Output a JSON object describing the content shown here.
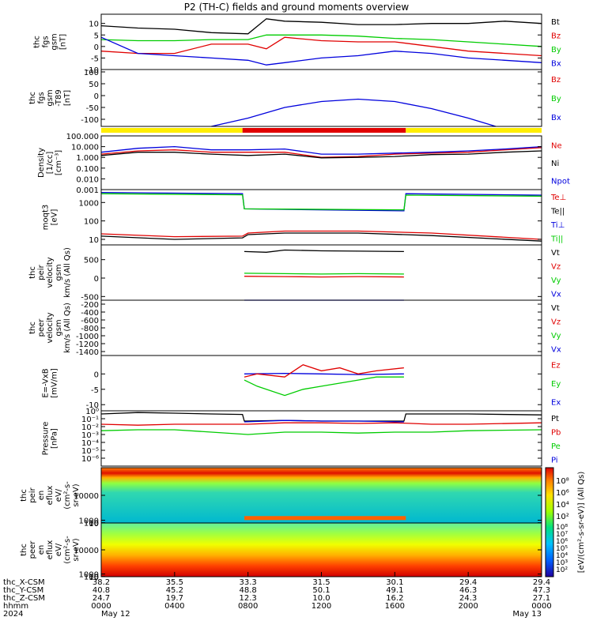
{
  "title": "P2 (TH-C) fields and ground moments overview",
  "colors": {
    "black": "#000000",
    "red": "#e00000",
    "green": "#00cc00",
    "blue": "#0000dd",
    "yellow": "#ffee00"
  },
  "chart_data": [
    {
      "type": "line",
      "name": "thc_fgs_gsm",
      "ylabel": [
        "thc",
        "fgs",
        "gsm",
        "[nT]"
      ],
      "ylim": [
        -10,
        14
      ],
      "yticks": [
        -10,
        -5,
        0,
        5,
        10
      ],
      "ytick_labels": [
        "-10",
        "-5",
        "0",
        "5",
        "10"
      ],
      "legend": [
        "Bt",
        "Bz",
        "By",
        "Bx"
      ],
      "legend_colors": [
        "#000000",
        "#e00000",
        "#00cc00",
        "#0000dd"
      ],
      "series": [
        {
          "name": "Bt",
          "color": "#000000",
          "x": [
            0,
            2,
            4,
            6,
            8,
            9,
            10,
            12,
            14,
            16,
            18,
            20,
            22,
            24
          ],
          "y": [
            9,
            8,
            7.5,
            6,
            5.5,
            12,
            11,
            10.5,
            9.5,
            9.5,
            10,
            10,
            11,
            10
          ]
        },
        {
          "name": "Bz",
          "color": "#e00000",
          "x": [
            0,
            2,
            4,
            6,
            8,
            9,
            10,
            12,
            14,
            16,
            18,
            20,
            22,
            24
          ],
          "y": [
            -2,
            -3,
            -3,
            1,
            1,
            -1,
            4,
            2.5,
            2,
            2,
            0,
            -2,
            -3,
            -4
          ]
        },
        {
          "name": "By",
          "color": "#00cc00",
          "x": [
            0,
            2,
            4,
            6,
            8,
            9,
            10,
            12,
            14,
            16,
            18,
            20,
            22,
            24
          ],
          "y": [
            3,
            2.5,
            2.5,
            3,
            3,
            5,
            5,
            5,
            4.5,
            3.5,
            3,
            2,
            1,
            0
          ]
        },
        {
          "name": "Bx",
          "color": "#0000dd",
          "x": [
            0,
            2,
            4,
            6,
            8,
            9,
            10,
            12,
            14,
            16,
            18,
            20,
            22,
            24
          ],
          "y": [
            4,
            -3,
            -4,
            -5,
            -6,
            -8,
            -7,
            -5,
            -4,
            -2,
            -3,
            -5,
            -6,
            -7
          ]
        }
      ]
    },
    {
      "type": "line",
      "name": "thc_fgs_gsm_T89",
      "ylabel": [
        "thc",
        "fgs",
        "gsm",
        "-T89",
        "[nT]"
      ],
      "ylim": [
        -130,
        110
      ],
      "yticks": [
        -100,
        -50,
        0,
        50,
        100
      ],
      "ytick_labels": [
        "-100",
        "-50",
        "0",
        "50",
        "100"
      ],
      "legend": [
        "Bz",
        "By",
        "Bx"
      ],
      "legend_colors": [
        "#e00000",
        "#00cc00",
        "#0000dd"
      ],
      "series": [
        {
          "name": "Bx",
          "color": "#0000dd",
          "x": [
            6,
            8,
            10,
            12,
            14,
            16,
            18,
            20,
            21.5
          ],
          "y": [
            -130,
            -95,
            -50,
            -25,
            -15,
            -25,
            -55,
            -95,
            -130
          ]
        }
      ]
    },
    {
      "type": "line",
      "name": "bar_state",
      "segments": [
        {
          "x": [
            0,
            7.7
          ],
          "color": "#ffee00"
        },
        {
          "x": [
            7.7,
            16.6
          ],
          "color": "#e00000"
        },
        {
          "x": [
            16.6,
            24
          ],
          "color": "#ffee00"
        }
      ]
    },
    {
      "type": "line",
      "name": "density",
      "scale": "log",
      "ylabel": [
        "Density",
        "[1/cc]",
        "[cm⁻³]"
      ],
      "ylim": [
        0.001,
        100
      ],
      "yticks": [
        0.001,
        0.01,
        0.1,
        1,
        10,
        100
      ],
      "ytick_labels": [
        "0.001",
        "0.010",
        "0.100",
        "1.000",
        "10.000",
        "100.000"
      ],
      "legend": [
        "Ne",
        "Ni",
        "Npot"
      ],
      "legend_colors": [
        "#e00000",
        "#000000",
        "#0000dd"
      ],
      "series": [
        {
          "name": "Ne",
          "color": "#e00000",
          "x": [
            0,
            2,
            4,
            6,
            8,
            10,
            12,
            14,
            16,
            18,
            20,
            22,
            24
          ],
          "y": [
            2,
            4,
            5,
            3,
            3,
            3,
            1,
            1.2,
            2,
            2.5,
            3,
            5,
            8
          ]
        },
        {
          "name": "Ni",
          "color": "#000000",
          "x": [
            0,
            2,
            4,
            6,
            8,
            10,
            12,
            14,
            16,
            18,
            20,
            22,
            24
          ],
          "y": [
            1.5,
            3,
            3,
            2,
            1.5,
            2,
            0.9,
            1,
            1.2,
            1.8,
            2,
            3,
            4
          ]
        },
        {
          "name": "Npot",
          "color": "#0000dd",
          "x": [
            0,
            2,
            4,
            6,
            8,
            10,
            12,
            14,
            16,
            18,
            20,
            22,
            24
          ],
          "y": [
            3,
            7,
            10,
            5,
            5,
            6,
            2,
            2,
            2.5,
            3,
            4,
            6,
            10
          ]
        }
      ]
    },
    {
      "type": "line",
      "name": "temperature",
      "scale": "log",
      "ylabel": [
        "moqt3",
        "[eV]"
      ],
      "ylim": [
        5,
        5000
      ],
      "yticks": [
        10,
        100,
        1000
      ],
      "ytick_labels": [
        "10",
        "100",
        "1000"
      ],
      "legend": [
        "Te⊥",
        "Te||",
        "Ti⊥",
        "Ti||"
      ],
      "legend_colors": [
        "#e00000",
        "#000000",
        "#0000dd",
        "#00cc00"
      ],
      "series": [
        {
          "name": "Ti⊥",
          "color": "#0000dd",
          "x": [
            0,
            7.7,
            7.8,
            16.5,
            16.6,
            24
          ],
          "y": [
            3500,
            3000,
            450,
            350,
            3000,
            2500
          ]
        },
        {
          "name": "Ti||",
          "color": "#00cc00",
          "x": [
            0,
            7.7,
            7.8,
            16.5,
            16.6,
            24
          ],
          "y": [
            3000,
            2600,
            450,
            400,
            2500,
            2200
          ]
        },
        {
          "name": "Te⊥",
          "color": "#e00000",
          "x": [
            0,
            4,
            7.7,
            8,
            10,
            14,
            18,
            24
          ],
          "y": [
            20,
            14,
            15,
            22,
            28,
            28,
            22,
            10
          ]
        },
        {
          "name": "Te||",
          "color": "#000000",
          "x": [
            0,
            4,
            7.7,
            8,
            10,
            14,
            18,
            24
          ],
          "y": [
            15,
            10,
            12,
            18,
            22,
            22,
            16,
            8
          ]
        }
      ]
    },
    {
      "type": "line",
      "name": "peir_velocity",
      "ylabel": [
        "thc",
        "peir",
        "velocity",
        "gsm",
        "km/s (All Qs)"
      ],
      "ylim": [
        -600,
        900
      ],
      "yticks": [
        -500,
        0,
        500
      ],
      "ytick_labels": [
        "-500",
        "0",
        "500"
      ],
      "legend": [
        "Vt",
        "Vz",
        "Vy",
        "Vx"
      ],
      "legend_colors": [
        "#000000",
        "#e00000",
        "#00cc00",
        "#0000dd"
      ],
      "series": [
        {
          "name": "Vt",
          "color": "#000000",
          "x": [
            7.8,
            9,
            10,
            12,
            14,
            16.5
          ],
          "y": [
            720,
            700,
            760,
            740,
            730,
            720
          ]
        },
        {
          "name": "Vy",
          "color": "#00cc00",
          "x": [
            7.8,
            10,
            12,
            14,
            16.5
          ],
          "y": [
            130,
            120,
            110,
            120,
            110
          ]
        },
        {
          "name": "Vz",
          "color": "#e00000",
          "x": [
            7.8,
            10,
            12,
            14,
            16.5
          ],
          "y": [
            50,
            40,
            30,
            40,
            30
          ]
        },
        {
          "name": "Vx",
          "color": "#0000dd",
          "x": [
            7.8,
            9,
            10,
            12,
            14,
            16.5
          ],
          "y": [
            -710,
            -690,
            -750,
            -730,
            -720,
            -710
          ]
        }
      ]
    },
    {
      "type": "line",
      "name": "peer_velocity",
      "ylabel": [
        "thc",
        "peer",
        "velocity",
        "gsm",
        "km/s (All Qs)"
      ],
      "ylim": [
        -1500,
        -100
      ],
      "yticks": [
        -1400,
        -1200,
        -1000,
        -800,
        -600,
        -400,
        -200
      ],
      "ytick_labels": [
        "-1400",
        "-1200",
        "-1000",
        "-800",
        "-600",
        "-400",
        "-200"
      ],
      "legend": [
        "Vt",
        "Vz",
        "Vy",
        "Vx"
      ],
      "legend_colors": [
        "#000000",
        "#e00000",
        "#00cc00",
        "#0000dd"
      ],
      "series": []
    },
    {
      "type": "line",
      "name": "e_field",
      "ylabel": [
        "E=-VxB",
        "[mV/m]"
      ],
      "ylim": [
        -12,
        6
      ],
      "yticks": [
        -10,
        -5,
        0
      ],
      "ytick_labels": [
        "-10",
        "-5",
        "0"
      ],
      "legend": [
        "Ez",
        "Ey",
        "Ex"
      ],
      "legend_colors": [
        "#e00000",
        "#00cc00",
        "#0000dd"
      ],
      "series": [
        {
          "name": "Ex",
          "color": "#0000dd",
          "x": [
            7.8,
            10,
            12,
            14,
            16.5
          ],
          "y": [
            0,
            0.2,
            0,
            -0.2,
            0
          ]
        },
        {
          "name": "Ez",
          "color": "#e00000",
          "x": [
            7.8,
            8.5,
            10,
            11,
            12,
            13,
            14,
            15,
            16.5
          ],
          "y": [
            -1,
            0,
            -1,
            3,
            1,
            2,
            0,
            1,
            2
          ]
        },
        {
          "name": "Ey",
          "color": "#00cc00",
          "x": [
            7.8,
            8.5,
            10,
            11,
            12,
            13,
            14,
            15,
            16.5
          ],
          "y": [
            -2,
            -4,
            -7,
            -5,
            -4,
            -3,
            -2,
            -1,
            -1
          ]
        }
      ]
    },
    {
      "type": "line",
      "name": "pressure",
      "scale": "log",
      "ylabel": [
        "Pressure",
        "[nPa]"
      ],
      "ylim": [
        1e-07,
        1
      ],
      "yticks": [
        1e-06,
        1e-05,
        0.0001,
        0.001,
        0.01,
        0.1,
        1
      ],
      "ytick_labels": [
        "10⁻⁶",
        "10⁻⁵",
        "10⁻⁴",
        "10⁻³",
        "10⁻²",
        "10⁻¹",
        "10⁰"
      ],
      "legend": [
        "Pt",
        "Pb",
        "Pe",
        "Pi"
      ],
      "legend_colors": [
        "#000000",
        "#e00000",
        "#00cc00",
        "#0000dd"
      ],
      "series": [
        {
          "name": "Pt",
          "color": "#000000",
          "x": [
            0,
            2,
            4,
            6,
            7.7,
            7.8,
            10,
            12,
            14,
            16.5,
            16.6,
            20,
            24
          ],
          "y": [
            0.4,
            0.6,
            0.5,
            0.4,
            0.35,
            0.05,
            0.06,
            0.05,
            0.05,
            0.05,
            0.4,
            0.4,
            0.3
          ]
        },
        {
          "name": "Pb",
          "color": "#e00000",
          "x": [
            0,
            2,
            4,
            8,
            10,
            12,
            14,
            16,
            18,
            20,
            24
          ],
          "y": [
            0.02,
            0.015,
            0.02,
            0.02,
            0.03,
            0.03,
            0.025,
            0.03,
            0.02,
            0.02,
            0.03
          ]
        },
        {
          "name": "Pe",
          "color": "#00cc00",
          "x": [
            0,
            2,
            4,
            8,
            10,
            12,
            14,
            16,
            18,
            20,
            24
          ],
          "y": [
            0.003,
            0.004,
            0.004,
            0.001,
            0.002,
            0.002,
            0.0015,
            0.002,
            0.002,
            0.003,
            0.004
          ]
        },
        {
          "name": "Pi",
          "color": "#0000dd",
          "x": [
            7.8,
            10,
            12,
            14,
            16.5
          ],
          "y": [
            0.04,
            0.06,
            0.05,
            0.05,
            0.04
          ]
        }
      ]
    },
    {
      "type": "heatmap",
      "name": "peir_en_eflux",
      "ylabel": [
        "thc",
        "peir",
        "en",
        "eflux",
        "eV/",
        "(cm²-s-",
        "sr-eV)"
      ],
      "ylim": [
        6,
        20000
      ],
      "yticks": [
        10,
        100,
        1000,
        10000
      ],
      "ytick_labels": [
        "10",
        "100",
        "1000",
        "10000"
      ]
    },
    {
      "type": "heatmap",
      "name": "peer_en_eflux",
      "ylabel": [
        "thc",
        "peer",
        "en",
        "eflux",
        "eV/",
        "(cm²-s-",
        "sr-eV)"
      ],
      "ylim": [
        6,
        20000
      ],
      "yticks": [
        10,
        100,
        1000,
        10000
      ],
      "ytick_labels": [
        "10",
        "100",
        "1000",
        "10000"
      ]
    }
  ],
  "colorbar": {
    "label": "[eV/(cm²-s-sr-eV)] (All Qs)",
    "ticks_upper": [
      "10⁸",
      "10⁶",
      "10⁴",
      "10²"
    ],
    "ticks_lower": [
      "10⁸",
      "10⁷",
      "10⁶",
      "10⁵",
      "10⁴",
      "10³",
      "10²"
    ]
  },
  "x_axis": {
    "row_labels": [
      "thc_X-CSM",
      "thc_Y-CSM",
      "thc_Z-CSM",
      "hhmm",
      "2024"
    ],
    "ticks": [
      {
        "x": 0,
        "vals": [
          "38.2",
          "40.8",
          "24.7",
          "0000",
          "May 12"
        ]
      },
      {
        "x": 4,
        "vals": [
          "35.5",
          "45.2",
          "19.7",
          "0400",
          ""
        ]
      },
      {
        "x": 8,
        "vals": [
          "33.3",
          "48.8",
          "12.3",
          "0800",
          ""
        ]
      },
      {
        "x": 12,
        "vals": [
          "31.5",
          "50.1",
          "10.0",
          "1200",
          ""
        ]
      },
      {
        "x": 16,
        "vals": [
          "30.1",
          "49.1",
          "16.2",
          "1600",
          ""
        ]
      },
      {
        "x": 20,
        "vals": [
          "29.4",
          "46.3",
          "24.3",
          "2000",
          ""
        ]
      },
      {
        "x": 24,
        "vals": [
          "29.4",
          "47.3",
          "27.1",
          "0000",
          "May 13"
        ]
      }
    ]
  }
}
